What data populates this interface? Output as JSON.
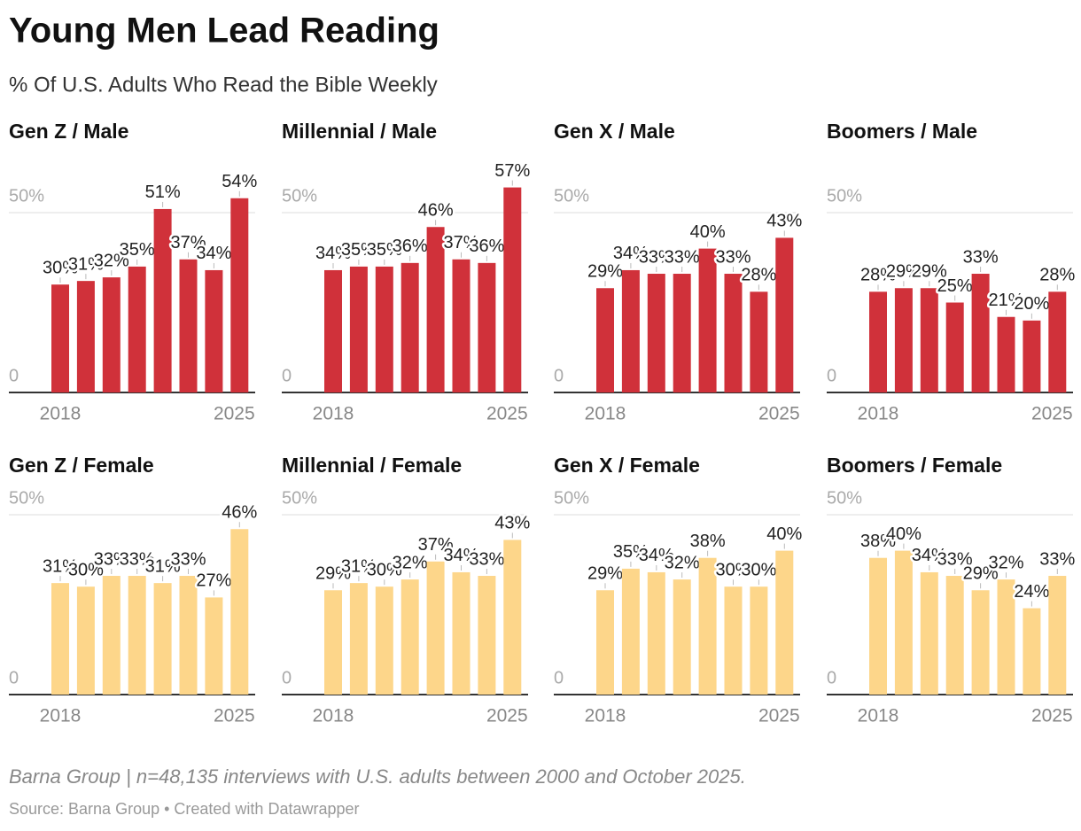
{
  "title": "Young Men Lead Reading",
  "subtitle": "% Of U.S. Adults Who Read the Bible Weekly",
  "notes": "Barna Group | n=48,135 interviews with U.S. adults between 2000 and October 2025.",
  "source": "Source: Barna Group • Created with Datawrapper",
  "chart_data": [
    {
      "type": "bar",
      "title": "Gen Z / Male",
      "categories": [
        "2018",
        null,
        null,
        null,
        null,
        null,
        null,
        "2025"
      ],
      "values": [
        30,
        31,
        32,
        35,
        51,
        37,
        34,
        54
      ],
      "value_labels": [
        "30%",
        "31%",
        "32%",
        "35%",
        "51%",
        "37%",
        "34%",
        "54%"
      ],
      "color": "#d0313a",
      "ylim": [
        0,
        60
      ],
      "yticks": [
        0,
        {
          "value": 50,
          "label": "50%"
        }
      ],
      "grid": true
    },
    {
      "type": "bar",
      "title": "Millennial / Male",
      "categories": [
        "2018",
        null,
        null,
        null,
        null,
        null,
        null,
        "2025"
      ],
      "values": [
        34,
        35,
        35,
        36,
        46,
        37,
        36,
        57
      ],
      "value_labels": [
        "34%",
        "35%",
        "35%",
        "36%",
        "46%",
        "37%",
        "36%",
        "57%"
      ],
      "color": "#d0313a",
      "ylim": [
        0,
        60
      ],
      "yticks": [
        0,
        {
          "value": 50,
          "label": "50%"
        }
      ],
      "grid": true
    },
    {
      "type": "bar",
      "title": "Gen X / Male",
      "categories": [
        "2018",
        null,
        null,
        null,
        null,
        null,
        null,
        "2025"
      ],
      "values": [
        29,
        34,
        33,
        33,
        40,
        33,
        28,
        43
      ],
      "value_labels": [
        "29%",
        "34%",
        "33%",
        "33%",
        "40%",
        "33%",
        "28%",
        "43%"
      ],
      "color": "#d0313a",
      "ylim": [
        0,
        60
      ],
      "yticks": [
        0,
        {
          "value": 50,
          "label": "50%"
        }
      ],
      "grid": true
    },
    {
      "type": "bar",
      "title": "Boomers / Male",
      "categories": [
        "2018",
        null,
        null,
        null,
        null,
        null,
        null,
        "2025"
      ],
      "values": [
        28,
        29,
        29,
        25,
        33,
        21,
        20,
        28
      ],
      "value_labels": [
        "28%",
        "29%",
        "29%",
        "25%",
        "33%",
        "21%",
        "20%",
        "28%"
      ],
      "color": "#d0313a",
      "ylim": [
        0,
        60
      ],
      "yticks": [
        0,
        {
          "value": 50,
          "label": "50%"
        }
      ],
      "grid": true
    },
    {
      "type": "bar",
      "title": "Gen Z / Female",
      "categories": [
        "2018",
        null,
        null,
        null,
        null,
        null,
        null,
        "2025"
      ],
      "values": [
        31,
        30,
        33,
        33,
        31,
        33,
        27,
        46
      ],
      "value_labels": [
        "31%",
        "30%",
        "33%",
        "33%",
        "31%",
        "33%",
        "27%",
        "46%"
      ],
      "color": "#fdd68a",
      "ylim": [
        0,
        55
      ],
      "yticks": [
        0,
        {
          "value": 50,
          "label": "50%"
        }
      ],
      "grid": true
    },
    {
      "type": "bar",
      "title": "Millennial / Female",
      "categories": [
        "2018",
        null,
        null,
        null,
        null,
        null,
        null,
        "2025"
      ],
      "values": [
        29,
        31,
        30,
        32,
        37,
        34,
        33,
        43
      ],
      "value_labels": [
        "29%",
        "31%",
        "30%",
        "32%",
        "37%",
        "34%",
        "33%",
        "43%"
      ],
      "color": "#fdd68a",
      "ylim": [
        0,
        55
      ],
      "yticks": [
        0,
        {
          "value": 50,
          "label": "50%"
        }
      ],
      "grid": true
    },
    {
      "type": "bar",
      "title": "Gen X / Female",
      "categories": [
        "2018",
        null,
        null,
        null,
        null,
        null,
        null,
        "2025"
      ],
      "values": [
        29,
        35,
        34,
        32,
        38,
        30,
        30,
        40
      ],
      "value_labels": [
        "29%",
        "35%",
        "34%",
        "32%",
        "38%",
        "30%",
        "30%",
        "40%"
      ],
      "color": "#fdd68a",
      "ylim": [
        0,
        55
      ],
      "yticks": [
        0,
        {
          "value": 50,
          "label": "50%"
        }
      ],
      "grid": true
    },
    {
      "type": "bar",
      "title": "Boomers / Female",
      "categories": [
        "2018",
        null,
        null,
        null,
        null,
        null,
        null,
        "2025"
      ],
      "values": [
        38,
        40,
        34,
        33,
        29,
        32,
        24,
        33
      ],
      "value_labels": [
        "38%",
        "40%",
        "34%",
        "33%",
        "29%",
        "32%",
        "24%",
        "33%"
      ],
      "color": "#fdd68a",
      "ylim": [
        0,
        55
      ],
      "yticks": [
        0,
        {
          "value": 50,
          "label": "50%"
        }
      ],
      "grid": true
    }
  ]
}
